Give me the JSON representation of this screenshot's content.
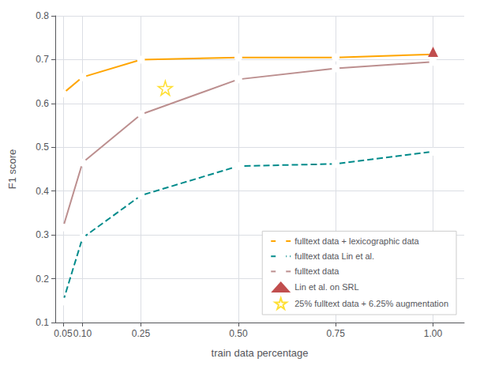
{
  "chart_data": {
    "type": "line",
    "xlabel": "train data percentage",
    "ylabel": "F1 score",
    "xlim": [
      0.03,
      1.08
    ],
    "ylim": [
      0.1,
      0.8
    ],
    "xticks": [
      0.05,
      {
        "value": 0.1,
        "label": "0.10"
      },
      0.25,
      {
        "value": 0.5,
        "label": "0.50"
      },
      0.75,
      {
        "value": 1,
        "label": "1.00"
      }
    ],
    "yticks": [
      0.1,
      0.2,
      0.3,
      0.4,
      0.5,
      0.6,
      0.7,
      0.8
    ],
    "grid": true,
    "legend": "lower right",
    "series": [
      {
        "name": "fulltext data + lexicographic data",
        "type": "line",
        "color": "#FFA500",
        "marker": "circle",
        "line_style": "solid",
        "x": [
          0.05,
          0.1,
          0.25,
          0.5,
          0.75,
          1.0
        ],
        "values": [
          0.623,
          0.66,
          0.7,
          0.705,
          0.705,
          0.712
        ]
      },
      {
        "name": "fulltext data Lin et al.",
        "type": "line",
        "color": "#008B8B",
        "marker": "circle",
        "line_style": "dashed",
        "x": [
          0.05,
          0.1,
          0.25,
          0.5,
          0.75,
          1.0
        ],
        "values": [
          0.148,
          0.293,
          0.39,
          0.457,
          0.462,
          0.49
        ]
      },
      {
        "name": "fulltext data",
        "type": "line",
        "color": "#BC8F8F",
        "marker": "circle",
        "line_style": "solid",
        "x": [
          0.05,
          0.1,
          0.25,
          0.5,
          0.75,
          1.0
        ],
        "values": [
          0.317,
          0.465,
          0.575,
          0.655,
          0.68,
          0.695
        ]
      },
      {
        "name": "Lin et al. on SRL",
        "type": "scatter",
        "color": "#B22222",
        "marker": "triangle",
        "x": [
          1.0
        ],
        "values": [
          0.718
        ]
      },
      {
        "name": "25% fulltext data + 6.25% augmentation",
        "type": "scatter",
        "color": "#FFD700",
        "marker": "star",
        "x": [
          0.3125
        ],
        "values": [
          0.635
        ]
      }
    ]
  }
}
